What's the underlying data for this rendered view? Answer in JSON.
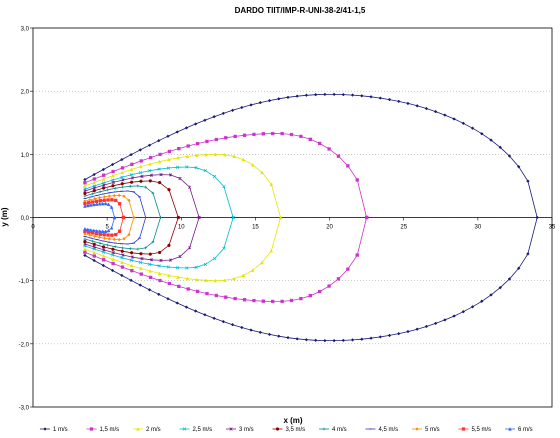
{
  "chart_data": {
    "type": "line",
    "title": "DARDO TIIT/IMP-R-UNI-38-2/41-1,5",
    "xlabel": "x (m)",
    "ylabel": "y (m)",
    "xlim": [
      0,
      35
    ],
    "ylim": [
      -3,
      3
    ],
    "x_ticks": [
      "0",
      "5",
      "10",
      "15",
      "20",
      "25",
      "30",
      "35"
    ],
    "y_ticks": [
      "-3,0",
      "-2,0",
      "-1,0",
      "0,0",
      "1,0",
      "2,0",
      "3,0"
    ],
    "grid": "horizontal dotted",
    "legend_position": "bottom",
    "shape": "closed isovel curves from nozzle at x≈3.5 m",
    "series": [
      {
        "name": "1 m/s",
        "color": "#1a1a7a",
        "marker": "diamond",
        "x_min": 3.5,
        "x_max": 34.0,
        "y_max": 1.95,
        "x_at_y_max": 20.0,
        "y_at_x_min": 0.6
      },
      {
        "name": "1,5 m/s",
        "color": "#cc33cc",
        "marker": "square",
        "x_min": 3.5,
        "x_max": 22.5,
        "y_max": 1.33,
        "x_at_y_max": 16.5,
        "y_at_x_min": 0.55
      },
      {
        "name": "2 m/s",
        "color": "#e6e600",
        "marker": "triangle",
        "x_min": 3.5,
        "x_max": 16.7,
        "y_max": 1.0,
        "x_at_y_max": 12.5,
        "y_at_x_min": 0.5
      },
      {
        "name": "2,5 m/s",
        "color": "#00bcd4",
        "marker": "x",
        "x_min": 3.5,
        "x_max": 13.5,
        "y_max": 0.8,
        "x_at_y_max": 10.5,
        "y_at_x_min": 0.45
      },
      {
        "name": "3 m/s",
        "color": "#7a1a8a",
        "marker": "star",
        "x_min": 3.5,
        "x_max": 11.2,
        "y_max": 0.68,
        "x_at_y_max": 9.0,
        "y_at_x_min": 0.42
      },
      {
        "name": "3,5 m/s",
        "color": "#8b0000",
        "marker": "circle",
        "x_min": 3.5,
        "x_max": 9.8,
        "y_max": 0.58,
        "x_at_y_max": 8.0,
        "y_at_x_min": 0.38
      },
      {
        "name": "4 m/s",
        "color": "#008b8b",
        "marker": "plus",
        "x_min": 3.5,
        "x_max": 8.6,
        "y_max": 0.5,
        "x_at_y_max": 7.2,
        "y_at_x_min": 0.34
      },
      {
        "name": "4,5 m/s",
        "color": "#3333cc",
        "marker": "dash",
        "x_min": 3.5,
        "x_max": 7.6,
        "y_max": 0.42,
        "x_at_y_max": 6.5,
        "y_at_x_min": 0.3
      },
      {
        "name": "5 m/s",
        "color": "#ff8c00",
        "marker": "diamond",
        "x_min": 3.5,
        "x_max": 6.8,
        "y_max": 0.35,
        "x_at_y_max": 5.9,
        "y_at_x_min": 0.26
      },
      {
        "name": "5,5 m/s",
        "color": "#ff3333",
        "marker": "square",
        "x_min": 3.5,
        "x_max": 6.1,
        "y_max": 0.28,
        "x_at_y_max": 5.4,
        "y_at_x_min": 0.22
      },
      {
        "name": "6 m/s",
        "color": "#3366ff",
        "marker": "triangle",
        "x_min": 3.5,
        "x_max": 5.5,
        "y_max": 0.22,
        "x_at_y_max": 4.9,
        "y_at_x_min": 0.18
      }
    ]
  }
}
